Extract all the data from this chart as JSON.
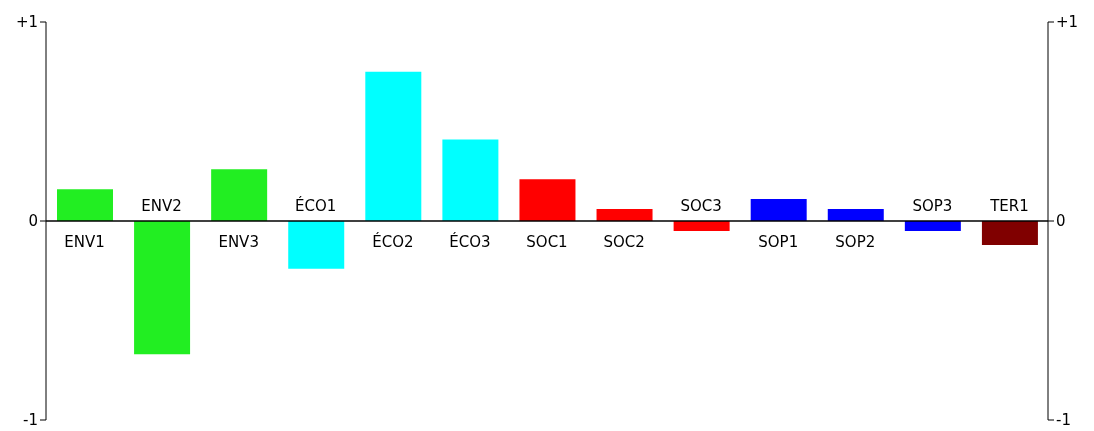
{
  "chart_data": {
    "type": "bar",
    "categories": [
      "ENV1",
      "ENV2",
      "ENV3",
      "ÉCO1",
      "ÉCO2",
      "ÉCO3",
      "SOC1",
      "SOC2",
      "SOC3",
      "SOP1",
      "SOP2",
      "SOP3",
      "TER1"
    ],
    "values": [
      0.16,
      -0.67,
      0.26,
      -0.24,
      0.75,
      0.41,
      0.21,
      0.06,
      -0.05,
      0.11,
      0.06,
      -0.05,
      -0.12
    ],
    "colors": [
      "#22ee22",
      "#22ee22",
      "#22ee22",
      "#00ffff",
      "#00ffff",
      "#00ffff",
      "#ff0000",
      "#ff0000",
      "#ff0000",
      "#0000ff",
      "#0000ff",
      "#0000ff",
      "#800000"
    ],
    "ylim": [
      -1,
      1
    ],
    "yticks": [
      {
        "value": -1,
        "label": "-1"
      },
      0,
      {
        "value": 1,
        "label": "+1"
      }
    ],
    "y2lim": [
      -1,
      1
    ],
    "y2ticks": [
      {
        "value": -1,
        "label": "-1"
      },
      0,
      {
        "value": 1,
        "label": "+1"
      }
    ],
    "grid": false,
    "legend": false
  }
}
